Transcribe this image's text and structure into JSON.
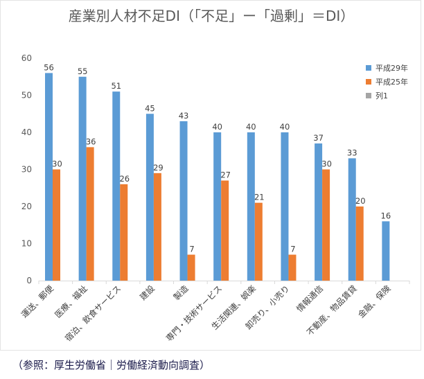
{
  "chart_data": {
    "type": "bar",
    "title": "産業別人材不足DI（「不足」ー「過剰」＝DI）",
    "categories": [
      "運送、郵便",
      "医療、福祉",
      "宿泊、飲食サービス",
      "建設",
      "製造",
      "専門・技術サービス",
      "生活関連、娯楽",
      "卸売り、小売り",
      "情報通信",
      "不動産、物品賃貸",
      "金融、保険"
    ],
    "series": [
      {
        "name": "平成29年",
        "color": "#5b9bd5",
        "values": [
          56,
          55,
          51,
          45,
          43,
          40,
          40,
          40,
          37,
          33,
          16
        ]
      },
      {
        "name": "平成25年",
        "color": "#ed7d31",
        "values": [
          30,
          36,
          26,
          29,
          7,
          27,
          21,
          7,
          30,
          20,
          null
        ]
      },
      {
        "name": "列1",
        "color": "#a5a5a5",
        "values": [
          null,
          null,
          null,
          null,
          null,
          null,
          null,
          null,
          null,
          null,
          null
        ]
      }
    ],
    "ylim": [
      0,
      60
    ],
    "yticks": [
      0,
      10,
      20,
      30,
      40,
      50,
      60
    ],
    "xlabel": "",
    "ylabel": "",
    "grid": false,
    "legend_position": "top-right"
  },
  "source_note": "（参照：厚生労働省｜労働経済動向調査）"
}
